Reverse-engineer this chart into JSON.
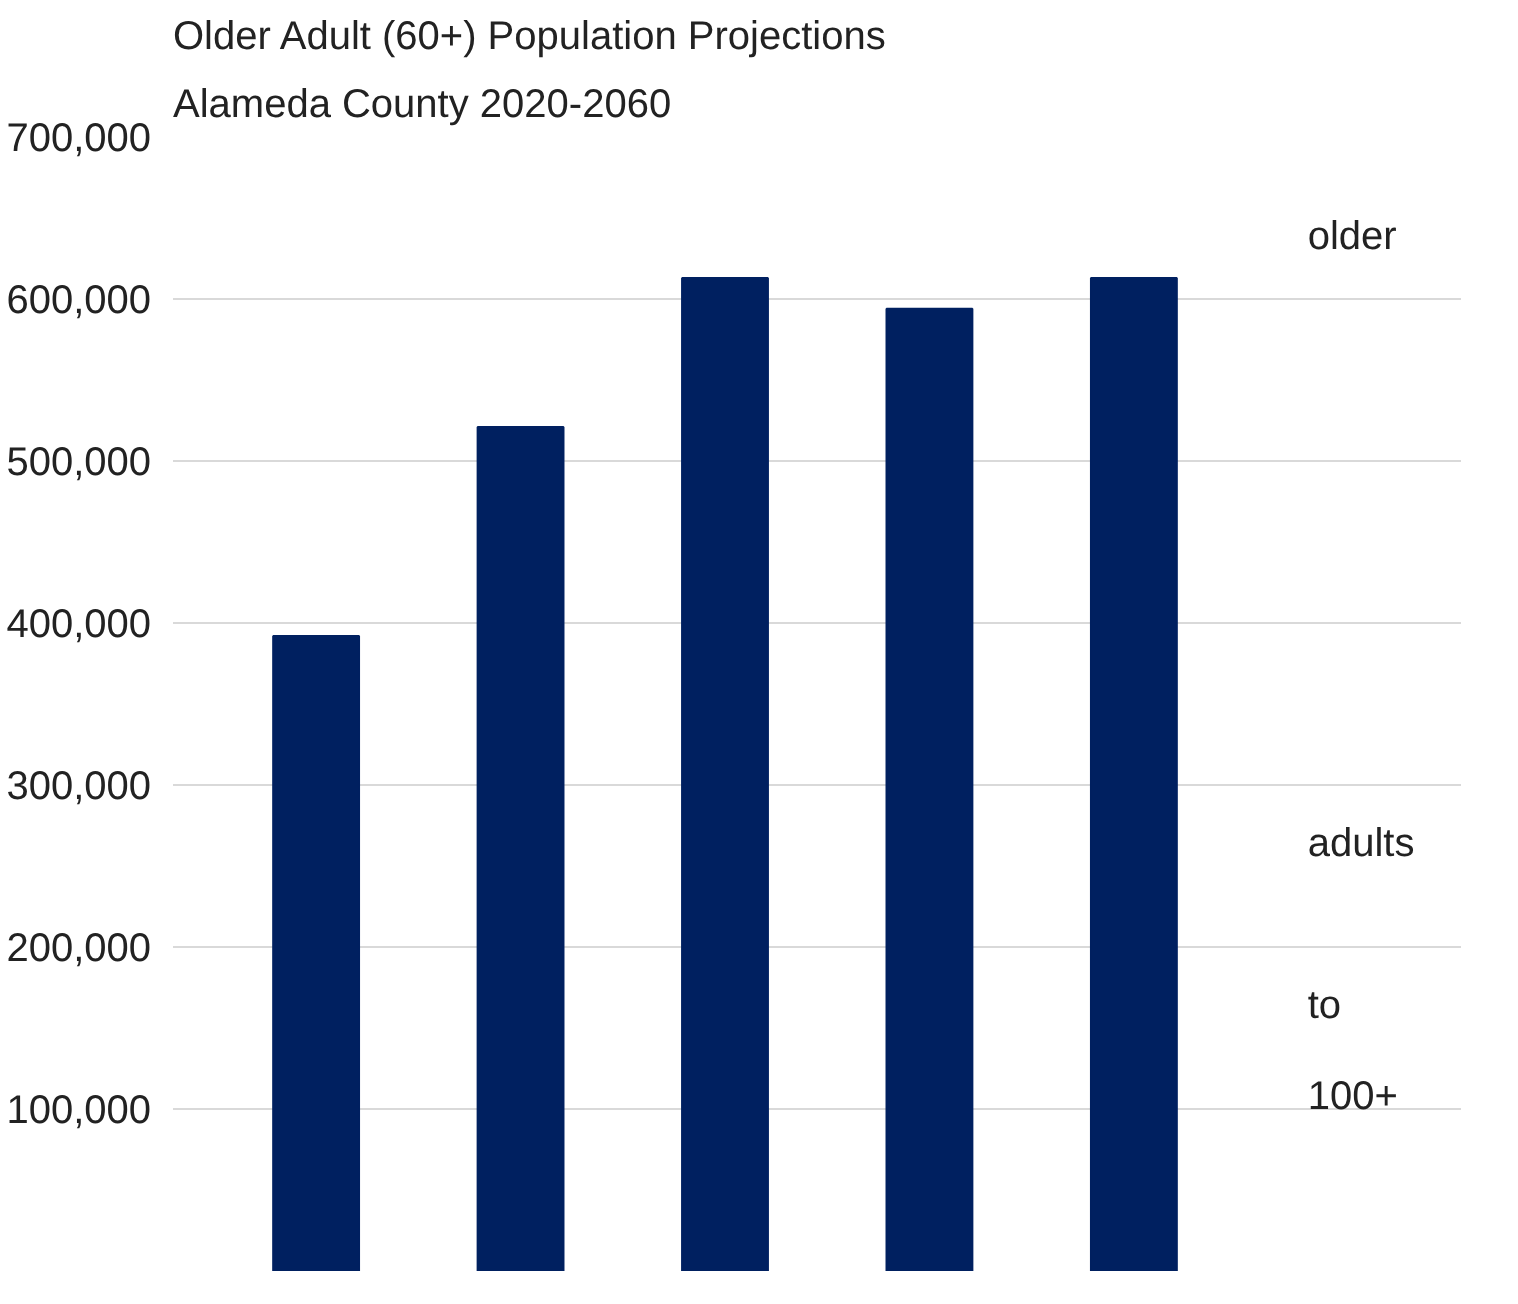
{
  "chart_data": {
    "type": "bar",
    "title": "Older Adult (60+) Population Projections",
    "subtitle": "Alameda County 2020-2060",
    "categories": [
      null,
      null,
      null,
      null,
      null
    ],
    "values": [
      392000,
      521000,
      613000,
      594000,
      613000
    ],
    "color": "#002060",
    "ylim": [
      0,
      700000
    ],
    "yticks": [
      {
        "value": 100000,
        "label": "100,000"
      },
      {
        "value": 200000,
        "label": "200,000"
      },
      {
        "value": 300000,
        "label": "300,000"
      },
      {
        "value": 400000,
        "label": "400,000"
      },
      {
        "value": 500000,
        "label": "500,000"
      },
      {
        "value": 600000,
        "label": "600,000"
      },
      {
        "value": 700000,
        "label": "700,000"
      }
    ],
    "grid": "y",
    "tick_labels": "y",
    "annotations": [
      "older",
      "adults",
      "to",
      "100+"
    ]
  }
}
